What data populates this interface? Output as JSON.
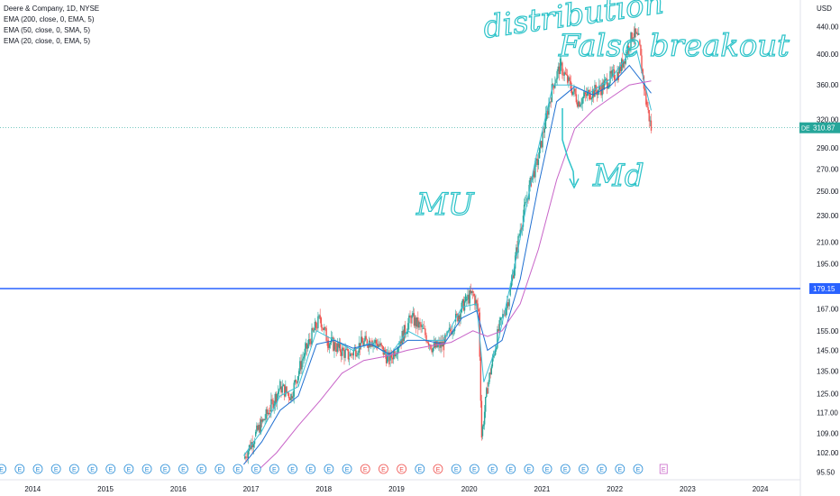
{
  "legend": {
    "title": "Deere & Company, 1D, NYSE",
    "ema200": "EMA (200, close, 0, EMA, 5)",
    "sma50": "EMA (50, close, 0, SMA, 5)",
    "ema20": "EMA (20, close, 0, EMA, 5)"
  },
  "price_axis": {
    "currency": "USD",
    "ticks": [
      "440.00",
      "400.00",
      "360.00",
      "320.00",
      "290.00",
      "270.00",
      "250.00",
      "230.00",
      "210.00",
      "195.00",
      "167.00",
      "155.00",
      "145.00",
      "135.00",
      "125.00",
      "117.00",
      "109.00",
      "102.00",
      "95.50"
    ]
  },
  "time_axis": {
    "ticks": [
      "2014",
      "2015",
      "2016",
      "2017",
      "2018",
      "2019",
      "2020",
      "2021",
      "2022",
      "2023",
      "2024"
    ]
  },
  "badges": {
    "last_symbol": "DE",
    "last_price": "310.87",
    "level_price": "179.15"
  },
  "annotations": {
    "top": "distribution",
    "false_breakout": "False breakout",
    "left": "MU",
    "right": "Md"
  },
  "colors": {
    "candle_up": "#26a69a",
    "candle_down": "#ef5350",
    "ema200": "#c864c8",
    "sma50": "#1f6fd1",
    "ema20": "#3fbfd6",
    "level_line": "#2962ff",
    "last_badge": "#26a69a",
    "annotation": "#2cc3c9",
    "earnings_up": "#2b8fd8",
    "earnings_down": "#ef5350"
  },
  "chart_data": {
    "type": "line",
    "symbol": "DE",
    "scale": "log",
    "x_range": [
      2013.6,
      2024.6
    ],
    "ylim": [
      93,
      470
    ],
    "series": [
      {
        "key": "close",
        "x": [
          2016.95,
          2017.1,
          2017.3,
          2017.45,
          2017.6,
          2017.75,
          2017.9,
          2018.0,
          2018.1,
          2018.25,
          2018.4,
          2018.55,
          2018.7,
          2018.8,
          2018.95,
          2019.1,
          2019.25,
          2019.4,
          2019.55,
          2019.7,
          2019.85,
          2020.0,
          2020.1,
          2020.18,
          2020.22,
          2020.3,
          2020.45,
          2020.6,
          2020.75,
          2020.9,
          2021.0,
          2021.1,
          2021.2,
          2021.3,
          2021.4,
          2021.55,
          2021.7,
          2021.85,
          2022.0,
          2022.1,
          2022.2,
          2022.3,
          2022.38,
          2022.42,
          2022.48,
          2022.55
        ],
        "y": [
          100,
          108,
          118,
          128,
          124,
          140,
          154,
          162,
          150,
          146,
          142,
          148,
          150,
          148,
          140,
          150,
          162,
          156,
          146,
          148,
          160,
          172,
          176,
          165,
          108,
          128,
          155,
          175,
          220,
          260,
          280,
          320,
          360,
          385,
          365,
          340,
          350,
          355,
          370,
          375,
          400,
          430,
          420,
          380,
          340,
          310
        ]
      },
      {
        "key": "ema20",
        "x": [
          2016.95,
          2017.2,
          2017.45,
          2017.7,
          2017.95,
          2018.2,
          2018.45,
          2018.7,
          2018.95,
          2019.2,
          2019.45,
          2019.7,
          2019.95,
          2020.15,
          2020.25,
          2020.45,
          2020.7,
          2020.95,
          2021.2,
          2021.45,
          2021.7,
          2022.0,
          2022.2,
          2022.35,
          2022.55
        ],
        "y": [
          101,
          110,
          124,
          128,
          155,
          150,
          145,
          149,
          142,
          155,
          150,
          150,
          168,
          170,
          130,
          150,
          200,
          275,
          360,
          360,
          350,
          368,
          395,
          405,
          330
        ]
      },
      {
        "key": "sma50",
        "x": [
          2016.95,
          2017.2,
          2017.45,
          2017.7,
          2017.95,
          2018.2,
          2018.45,
          2018.7,
          2018.95,
          2019.2,
          2019.45,
          2019.7,
          2019.95,
          2020.15,
          2020.3,
          2020.5,
          2020.75,
          2021.0,
          2021.25,
          2021.5,
          2021.75,
          2022.0,
          2022.25,
          2022.55
        ],
        "y": [
          98,
          106,
          118,
          124,
          148,
          150,
          146,
          148,
          143,
          150,
          150,
          148,
          162,
          166,
          145,
          150,
          185,
          255,
          340,
          358,
          348,
          360,
          385,
          350
        ]
      },
      {
        "key": "ema200",
        "x": [
          2017.1,
          2017.4,
          2017.7,
          2018.0,
          2018.3,
          2018.6,
          2018.9,
          2019.2,
          2019.5,
          2019.8,
          2020.1,
          2020.3,
          2020.5,
          2020.75,
          2021.0,
          2021.25,
          2021.5,
          2021.75,
          2022.0,
          2022.25,
          2022.55
        ],
        "y": [
          95,
          102,
          112,
          122,
          134,
          140,
          142,
          145,
          147,
          149,
          155,
          152,
          155,
          170,
          205,
          260,
          310,
          330,
          345,
          360,
          365
        ]
      }
    ],
    "horizontal_lines": [
      179.15,
      310.87
    ]
  }
}
